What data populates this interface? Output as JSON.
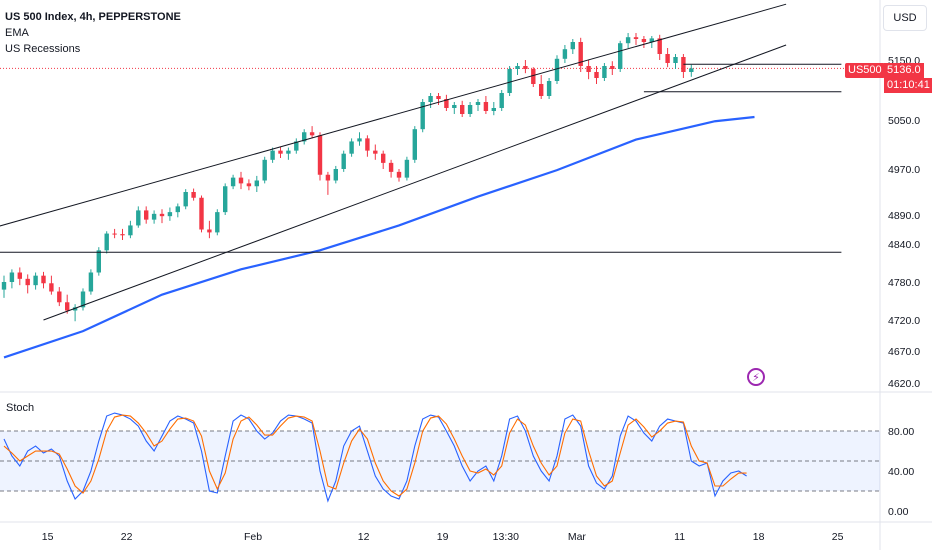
{
  "header": {
    "title": "US 500 Index, 4h, PEPPERSTONE",
    "indicators": [
      "EMA",
      "US Recessions"
    ]
  },
  "currency_label": "USD",
  "symbol_badge": "US500",
  "last_price_label": "5136.0",
  "countdown_label": "01:10:41",
  "stoch_label": "Stoch",
  "colors": {
    "up": "#26a69a",
    "down": "#f23645",
    "ema": "#2962ff",
    "k": "#2962ff",
    "d": "#ff6d00",
    "band": "#2962ff",
    "badge": "#f23645",
    "alert": "#9c27b0"
  },
  "chart_data": [
    {
      "type": "candlestick",
      "title": "US 500 Index, 4h, PEPPERSTONE",
      "interval": "4h",
      "series_labels": [
        "EMA",
        "US Recessions"
      ],
      "y_ticks": [
        4620.0,
        4670.0,
        4720.0,
        4780.0,
        4840.0,
        4890.0,
        4970.0,
        5050.0,
        5150.0
      ],
      "y_tick_labels": [
        "4620.0",
        "4670.0",
        "4720.0",
        "4780.0",
        "4840.0",
        "4890.0",
        "4970.0",
        "5050.0",
        "5150.0"
      ],
      "x_ticks": [
        {
          "label": "15",
          "i": 4
        },
        {
          "label": "22",
          "i": 14
        },
        {
          "label": "Feb",
          "i": 30
        },
        {
          "label": "12",
          "i": 44
        },
        {
          "label": "19",
          "i": 54
        },
        {
          "label": "13:30",
          "i": 62
        },
        {
          "label": "Mar",
          "i": 71
        },
        {
          "label": "11",
          "i": 84
        },
        {
          "label": "18",
          "i": 94
        },
        {
          "label": "25",
          "i": 104
        }
      ],
      "last_price": 5136.0,
      "candles": [
        {
          "o": 4768,
          "h": 4790,
          "l": 4755,
          "c": 4780
        },
        {
          "o": 4780,
          "h": 4800,
          "l": 4770,
          "c": 4795
        },
        {
          "o": 4795,
          "h": 4803,
          "l": 4775,
          "c": 4785
        },
        {
          "o": 4785,
          "h": 4792,
          "l": 4762,
          "c": 4775
        },
        {
          "o": 4775,
          "h": 4795,
          "l": 4768,
          "c": 4790
        },
        {
          "o": 4790,
          "h": 4796,
          "l": 4770,
          "c": 4778
        },
        {
          "o": 4778,
          "h": 4790,
          "l": 4760,
          "c": 4765
        },
        {
          "o": 4765,
          "h": 4772,
          "l": 4742,
          "c": 4748
        },
        {
          "o": 4748,
          "h": 4760,
          "l": 4730,
          "c": 4735
        },
        {
          "o": 4735,
          "h": 4745,
          "l": 4718,
          "c": 4740
        },
        {
          "o": 4740,
          "h": 4770,
          "l": 4735,
          "c": 4765
        },
        {
          "o": 4765,
          "h": 4800,
          "l": 4760,
          "c": 4795
        },
        {
          "o": 4795,
          "h": 4835,
          "l": 4790,
          "c": 4830
        },
        {
          "o": 4830,
          "h": 4862,
          "l": 4825,
          "c": 4858
        },
        {
          "o": 4858,
          "h": 4866,
          "l": 4850,
          "c": 4857
        },
        {
          "o": 4857,
          "h": 4866,
          "l": 4847,
          "c": 4855
        },
        {
          "o": 4855,
          "h": 4880,
          "l": 4850,
          "c": 4872
        },
        {
          "o": 4872,
          "h": 4905,
          "l": 4868,
          "c": 4898
        },
        {
          "o": 4898,
          "h": 4905,
          "l": 4875,
          "c": 4882
        },
        {
          "o": 4882,
          "h": 4898,
          "l": 4875,
          "c": 4892
        },
        {
          "o": 4892,
          "h": 4900,
          "l": 4876,
          "c": 4888
        },
        {
          "o": 4888,
          "h": 4903,
          "l": 4880,
          "c": 4895
        },
        {
          "o": 4895,
          "h": 4910,
          "l": 4886,
          "c": 4905
        },
        {
          "o": 4905,
          "h": 4935,
          "l": 4900,
          "c": 4930
        },
        {
          "o": 4930,
          "h": 4936,
          "l": 4915,
          "c": 4920
        },
        {
          "o": 4920,
          "h": 4924,
          "l": 4860,
          "c": 4865
        },
        {
          "o": 4865,
          "h": 4880,
          "l": 4850,
          "c": 4860
        },
        {
          "o": 4860,
          "h": 4900,
          "l": 4855,
          "c": 4895
        },
        {
          "o": 4895,
          "h": 4945,
          "l": 4890,
          "c": 4940
        },
        {
          "o": 4940,
          "h": 4960,
          "l": 4935,
          "c": 4955
        },
        {
          "o": 4955,
          "h": 4965,
          "l": 4935,
          "c": 4945
        },
        {
          "o": 4945,
          "h": 4952,
          "l": 4933,
          "c": 4940
        },
        {
          "o": 4940,
          "h": 4958,
          "l": 4930,
          "c": 4950
        },
        {
          "o": 4950,
          "h": 4990,
          "l": 4945,
          "c": 4985
        },
        {
          "o": 4985,
          "h": 5005,
          "l": 4980,
          "c": 5000
        },
        {
          "o": 5000,
          "h": 5006,
          "l": 4988,
          "c": 4995
        },
        {
          "o": 4995,
          "h": 5005,
          "l": 4985,
          "c": 5000
        },
        {
          "o": 5000,
          "h": 5020,
          "l": 4995,
          "c": 5015
        },
        {
          "o": 5015,
          "h": 5035,
          "l": 5010,
          "c": 5030
        },
        {
          "o": 5030,
          "h": 5040,
          "l": 5020,
          "c": 5025
        },
        {
          "o": 5025,
          "h": 5030,
          "l": 4950,
          "c": 4960
        },
        {
          "o": 4960,
          "h": 4965,
          "l": 4925,
          "c": 4950
        },
        {
          "o": 4950,
          "h": 4975,
          "l": 4945,
          "c": 4970
        },
        {
          "o": 4970,
          "h": 5000,
          "l": 4965,
          "c": 4995
        },
        {
          "o": 4995,
          "h": 5020,
          "l": 4990,
          "c": 5015
        },
        {
          "o": 5015,
          "h": 5030,
          "l": 5008,
          "c": 5020
        },
        {
          "o": 5020,
          "h": 5025,
          "l": 4990,
          "c": 5000
        },
        {
          "o": 5000,
          "h": 5010,
          "l": 4985,
          "c": 4995
        },
        {
          "o": 4995,
          "h": 5000,
          "l": 4970,
          "c": 4980
        },
        {
          "o": 4980,
          "h": 4985,
          "l": 4955,
          "c": 4965
        },
        {
          "o": 4965,
          "h": 4970,
          "l": 4948,
          "c": 4955
        },
        {
          "o": 4955,
          "h": 4990,
          "l": 4950,
          "c": 4985
        },
        {
          "o": 4985,
          "h": 5040,
          "l": 4980,
          "c": 5035
        },
        {
          "o": 5035,
          "h": 5085,
          "l": 5030,
          "c": 5080
        },
        {
          "o": 5080,
          "h": 5095,
          "l": 5070,
          "c": 5090
        },
        {
          "o": 5090,
          "h": 5095,
          "l": 5075,
          "c": 5085
        },
        {
          "o": 5085,
          "h": 5092,
          "l": 5065,
          "c": 5070
        },
        {
          "o": 5070,
          "h": 5080,
          "l": 5060,
          "c": 5075
        },
        {
          "o": 5075,
          "h": 5082,
          "l": 5055,
          "c": 5060
        },
        {
          "o": 5060,
          "h": 5080,
          "l": 5055,
          "c": 5075
        },
        {
          "o": 5075,
          "h": 5085,
          "l": 5065,
          "c": 5080
        },
        {
          "o": 5080,
          "h": 5090,
          "l": 5060,
          "c": 5065
        },
        {
          "o": 5065,
          "h": 5080,
          "l": 5058,
          "c": 5070
        },
        {
          "o": 5070,
          "h": 5100,
          "l": 5065,
          "c": 5095
        },
        {
          "o": 5095,
          "h": 5140,
          "l": 5090,
          "c": 5135
        },
        {
          "o": 5135,
          "h": 5145,
          "l": 5125,
          "c": 5140
        },
        {
          "o": 5140,
          "h": 5150,
          "l": 5128,
          "c": 5135
        },
        {
          "o": 5135,
          "h": 5138,
          "l": 5105,
          "c": 5110
        },
        {
          "o": 5110,
          "h": 5125,
          "l": 5085,
          "c": 5090
        },
        {
          "o": 5090,
          "h": 5120,
          "l": 5085,
          "c": 5115
        },
        {
          "o": 5115,
          "h": 5158,
          "l": 5110,
          "c": 5152
        },
        {
          "o": 5152,
          "h": 5175,
          "l": 5145,
          "c": 5168
        },
        {
          "o": 5168,
          "h": 5185,
          "l": 5160,
          "c": 5180
        },
        {
          "o": 5180,
          "h": 5187,
          "l": 5130,
          "c": 5140
        },
        {
          "o": 5140,
          "h": 5150,
          "l": 5118,
          "c": 5130
        },
        {
          "o": 5130,
          "h": 5140,
          "l": 5110,
          "c": 5120
        },
        {
          "o": 5120,
          "h": 5145,
          "l": 5115,
          "c": 5140
        },
        {
          "o": 5140,
          "h": 5148,
          "l": 5125,
          "c": 5135
        },
        {
          "o": 5135,
          "h": 5182,
          "l": 5130,
          "c": 5178
        },
        {
          "o": 5178,
          "h": 5195,
          "l": 5170,
          "c": 5188
        },
        {
          "o": 5188,
          "h": 5195,
          "l": 5175,
          "c": 5185
        },
        {
          "o": 5185,
          "h": 5190,
          "l": 5170,
          "c": 5180
        },
        {
          "o": 5180,
          "h": 5190,
          "l": 5170,
          "c": 5186
        },
        {
          "o": 5186,
          "h": 5192,
          "l": 5150,
          "c": 5160
        },
        {
          "o": 5160,
          "h": 5170,
          "l": 5138,
          "c": 5145
        },
        {
          "o": 5145,
          "h": 5160,
          "l": 5135,
          "c": 5155
        },
        {
          "o": 5155,
          "h": 5160,
          "l": 5120,
          "c": 5130
        },
        {
          "o": 5130,
          "h": 5142,
          "l": 5122,
          "c": 5136
        }
      ],
      "ema": [
        {
          "i": 0,
          "v": 4660
        },
        {
          "i": 10,
          "v": 4702
        },
        {
          "i": 20,
          "v": 4760
        },
        {
          "i": 30,
          "v": 4800
        },
        {
          "i": 40,
          "v": 4830
        },
        {
          "i": 50,
          "v": 4872
        },
        {
          "i": 60,
          "v": 4922
        },
        {
          "i": 70,
          "v": 4968
        },
        {
          "i": 80,
          "v": 5018
        },
        {
          "i": 90,
          "v": 5048
        },
        {
          "i": 95,
          "v": 5055
        }
      ],
      "lines": [
        {
          "name": "channel-upper",
          "from": {
            "i": -6,
            "v": 4850
          },
          "to": {
            "i": 99,
            "v": 5243
          }
        },
        {
          "name": "channel-lower",
          "from": {
            "i": 5,
            "v": 4720
          },
          "to": {
            "i": 99,
            "v": 5175
          }
        },
        {
          "name": "support-horizontal",
          "from": {
            "i": -6,
            "v": 4827
          },
          "to": {
            "i": 106,
            "v": 4827
          }
        },
        {
          "name": "range-top",
          "from": {
            "i": 86,
            "v": 5143
          },
          "to": {
            "i": 106,
            "v": 5143
          }
        },
        {
          "name": "range-bottom",
          "from": {
            "i": 81,
            "v": 5097
          },
          "to": {
            "i": 106,
            "v": 5097
          }
        }
      ]
    },
    {
      "type": "line",
      "title": "Stoch",
      "y_ticks": [
        0,
        40,
        80
      ],
      "y_tick_labels": [
        "0.00",
        "40.00",
        "80.00"
      ],
      "bands": [
        20,
        50,
        80
      ],
      "series": [
        {
          "values": [
            72,
            55,
            45,
            60,
            65,
            58,
            62,
            55,
            30,
            12,
            20,
            40,
            70,
            95,
            98,
            96,
            92,
            85,
            70,
            60,
            75,
            90,
            95,
            92,
            88,
            60,
            20,
            18,
            55,
            90,
            96,
            92,
            80,
            72,
            78,
            90,
            96,
            95,
            92,
            88,
            40,
            10,
            30,
            65,
            80,
            85,
            60,
            35,
            22,
            15,
            12,
            30,
            65,
            92,
            96,
            94,
            80,
            65,
            45,
            30,
            40,
            45,
            30,
            55,
            92,
            95,
            80,
            55,
            40,
            30,
            55,
            92,
            96,
            85,
            45,
            28,
            22,
            35,
            75,
            95,
            90,
            78,
            70,
            85,
            92,
            90,
            88,
            50,
            45,
            48,
            15,
            30,
            38,
            40,
            35
          ]
        },
        {
          "values": [
            65,
            58,
            50,
            55,
            60,
            60,
            60,
            57,
            42,
            25,
            18,
            30,
            52,
            80,
            94,
            96,
            95,
            88,
            78,
            65,
            70,
            82,
            92,
            93,
            90,
            75,
            40,
            22,
            38,
            72,
            90,
            94,
            86,
            76,
            76,
            85,
            93,
            95,
            94,
            90,
            60,
            25,
            22,
            48,
            70,
            82,
            72,
            48,
            30,
            20,
            15,
            22,
            48,
            80,
            93,
            95,
            87,
            72,
            55,
            40,
            38,
            42,
            36,
            45,
            78,
            92,
            86,
            65,
            48,
            36,
            45,
            78,
            92,
            90,
            60,
            35,
            25,
            30,
            58,
            86,
            92,
            84,
            74,
            80,
            88,
            90,
            89,
            65,
            50,
            48,
            25,
            25,
            32,
            38,
            38
          ]
        }
      ]
    }
  ]
}
